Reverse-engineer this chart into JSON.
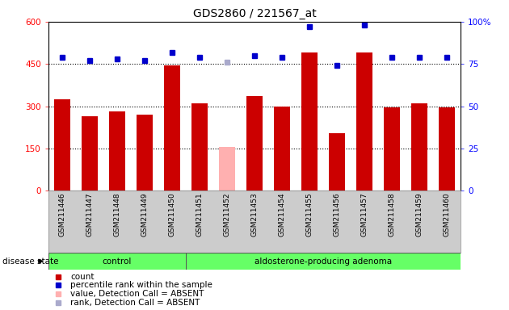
{
  "title": "GDS2860 / 221567_at",
  "samples": [
    "GSM211446",
    "GSM211447",
    "GSM211448",
    "GSM211449",
    "GSM211450",
    "GSM211451",
    "GSM211452",
    "GSM211453",
    "GSM211454",
    "GSM211455",
    "GSM211456",
    "GSM211457",
    "GSM211458",
    "GSM211459",
    "GSM211460"
  ],
  "count_values": [
    325,
    265,
    280,
    270,
    445,
    310,
    155,
    335,
    300,
    490,
    205,
    490,
    295,
    310,
    295
  ],
  "count_absent": [
    false,
    false,
    false,
    false,
    false,
    false,
    true,
    false,
    false,
    false,
    false,
    false,
    false,
    false,
    false
  ],
  "percentile_values": [
    79,
    77,
    78,
    77,
    82,
    79,
    76,
    80,
    79,
    97,
    74,
    98,
    79,
    79,
    79
  ],
  "percentile_absent": [
    false,
    false,
    false,
    false,
    false,
    false,
    true,
    false,
    false,
    false,
    false,
    false,
    false,
    false,
    false
  ],
  "groups": [
    {
      "label": "control",
      "start": 0,
      "end": 5
    },
    {
      "label": "aldosterone-producing adenoma",
      "start": 5,
      "end": 15
    }
  ],
  "group_color": "#66ff66",
  "ylim_left": [
    0,
    600
  ],
  "ylim_right": [
    0,
    100
  ],
  "yticks_left": [
    0,
    150,
    300,
    450,
    600
  ],
  "yticks_right": [
    0,
    25,
    50,
    75,
    100
  ],
  "bar_color": "#cc0000",
  "bar_absent_color": "#ffb0b0",
  "dot_color": "#0000cc",
  "dot_absent_color": "#aaaacc",
  "grid_color": "#000000",
  "disease_label": "disease state",
  "legend_items": [
    {
      "color": "#cc0000",
      "label": "count"
    },
    {
      "color": "#0000cc",
      "label": "percentile rank within the sample"
    },
    {
      "color": "#ffb0b0",
      "label": "value, Detection Call = ABSENT"
    },
    {
      "color": "#aaaacc",
      "label": "rank, Detection Call = ABSENT"
    }
  ],
  "bar_width": 0.6,
  "tick_area_color": "#cccccc",
  "group_row_border_color": "#888888"
}
